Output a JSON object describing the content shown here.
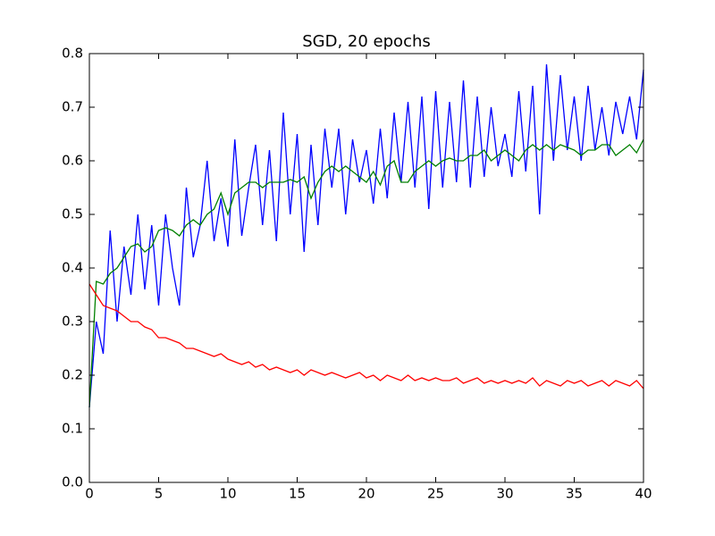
{
  "chart_data": {
    "type": "line",
    "title": "SGD, 20 epochs",
    "x": [
      0,
      0.5,
      1,
      1.5,
      2,
      2.5,
      3,
      3.5,
      4,
      4.5,
      5,
      5.5,
      6,
      6.5,
      7,
      7.5,
      8,
      8.5,
      9,
      9.5,
      10,
      10.5,
      11,
      11.5,
      12,
      12.5,
      13,
      13.5,
      14,
      14.5,
      15,
      15.5,
      16,
      16.5,
      17,
      17.5,
      18,
      18.5,
      19,
      19.5,
      20,
      20.5,
      21,
      21.5,
      22,
      22.5,
      23,
      23.5,
      24,
      24.5,
      25,
      25.5,
      26,
      26.5,
      27,
      27.5,
      28,
      28.5,
      29,
      29.5,
      30,
      30.5,
      31,
      31.5,
      32,
      32.5,
      33,
      33.5,
      34,
      34.5,
      35,
      35.5,
      36,
      36.5,
      37,
      37.5,
      38,
      38.5,
      39,
      39.5,
      40
    ],
    "series": [
      {
        "color": "#0000ff",
        "values": [
          0.14,
          0.3,
          0.24,
          0.47,
          0.3,
          0.44,
          0.35,
          0.5,
          0.36,
          0.48,
          0.33,
          0.5,
          0.4,
          0.33,
          0.55,
          0.42,
          0.48,
          0.6,
          0.45,
          0.53,
          0.44,
          0.64,
          0.46,
          0.55,
          0.63,
          0.48,
          0.62,
          0.45,
          0.69,
          0.5,
          0.65,
          0.43,
          0.63,
          0.48,
          0.66,
          0.55,
          0.66,
          0.5,
          0.64,
          0.56,
          0.62,
          0.52,
          0.66,
          0.53,
          0.69,
          0.56,
          0.71,
          0.55,
          0.72,
          0.51,
          0.73,
          0.55,
          0.71,
          0.56,
          0.75,
          0.55,
          0.72,
          0.57,
          0.7,
          0.59,
          0.65,
          0.57,
          0.73,
          0.58,
          0.74,
          0.5,
          0.78,
          0.6,
          0.76,
          0.62,
          0.72,
          0.6,
          0.74,
          0.62,
          0.7,
          0.61,
          0.71,
          0.65,
          0.72,
          0.64,
          0.77
        ]
      },
      {
        "color": "#008000",
        "values": [
          0.14,
          0.375,
          0.37,
          0.39,
          0.4,
          0.42,
          0.44,
          0.445,
          0.43,
          0.44,
          0.47,
          0.475,
          0.47,
          0.46,
          0.48,
          0.49,
          0.48,
          0.5,
          0.51,
          0.54,
          0.5,
          0.54,
          0.55,
          0.56,
          0.56,
          0.55,
          0.56,
          0.56,
          0.56,
          0.565,
          0.56,
          0.57,
          0.53,
          0.56,
          0.58,
          0.59,
          0.58,
          0.59,
          0.58,
          0.57,
          0.56,
          0.58,
          0.555,
          0.59,
          0.6,
          0.56,
          0.56,
          0.58,
          0.59,
          0.6,
          0.59,
          0.6,
          0.605,
          0.6,
          0.6,
          0.61,
          0.61,
          0.62,
          0.6,
          0.61,
          0.62,
          0.61,
          0.6,
          0.62,
          0.63,
          0.62,
          0.63,
          0.62,
          0.63,
          0.625,
          0.62,
          0.61,
          0.62,
          0.62,
          0.63,
          0.63,
          0.61,
          0.62,
          0.63,
          0.615,
          0.64
        ]
      },
      {
        "color": "#ff0000",
        "values": [
          0.37,
          0.35,
          0.33,
          0.325,
          0.32,
          0.31,
          0.3,
          0.3,
          0.29,
          0.285,
          0.27,
          0.27,
          0.265,
          0.26,
          0.25,
          0.25,
          0.245,
          0.24,
          0.235,
          0.24,
          0.23,
          0.225,
          0.22,
          0.225,
          0.215,
          0.22,
          0.21,
          0.215,
          0.21,
          0.205,
          0.21,
          0.2,
          0.21,
          0.205,
          0.2,
          0.205,
          0.2,
          0.195,
          0.2,
          0.205,
          0.195,
          0.2,
          0.19,
          0.2,
          0.195,
          0.19,
          0.2,
          0.19,
          0.195,
          0.19,
          0.195,
          0.19,
          0.19,
          0.195,
          0.185,
          0.19,
          0.195,
          0.185,
          0.19,
          0.185,
          0.19,
          0.185,
          0.19,
          0.185,
          0.195,
          0.18,
          0.19,
          0.185,
          0.18,
          0.19,
          0.185,
          0.19,
          0.18,
          0.185,
          0.19,
          0.18,
          0.19,
          0.185,
          0.18,
          0.19,
          0.175
        ]
      }
    ],
    "xlim": [
      0,
      40
    ],
    "xticks": [
      0,
      5,
      10,
      15,
      20,
      25,
      30,
      35,
      40
    ],
    "ylim": [
      0,
      0.8
    ],
    "yticks": [
      {
        "value": 0,
        "label": "0.0"
      },
      0.1,
      0.2,
      0.3,
      0.4,
      0.5,
      0.6,
      0.7,
      0.8
    ]
  }
}
